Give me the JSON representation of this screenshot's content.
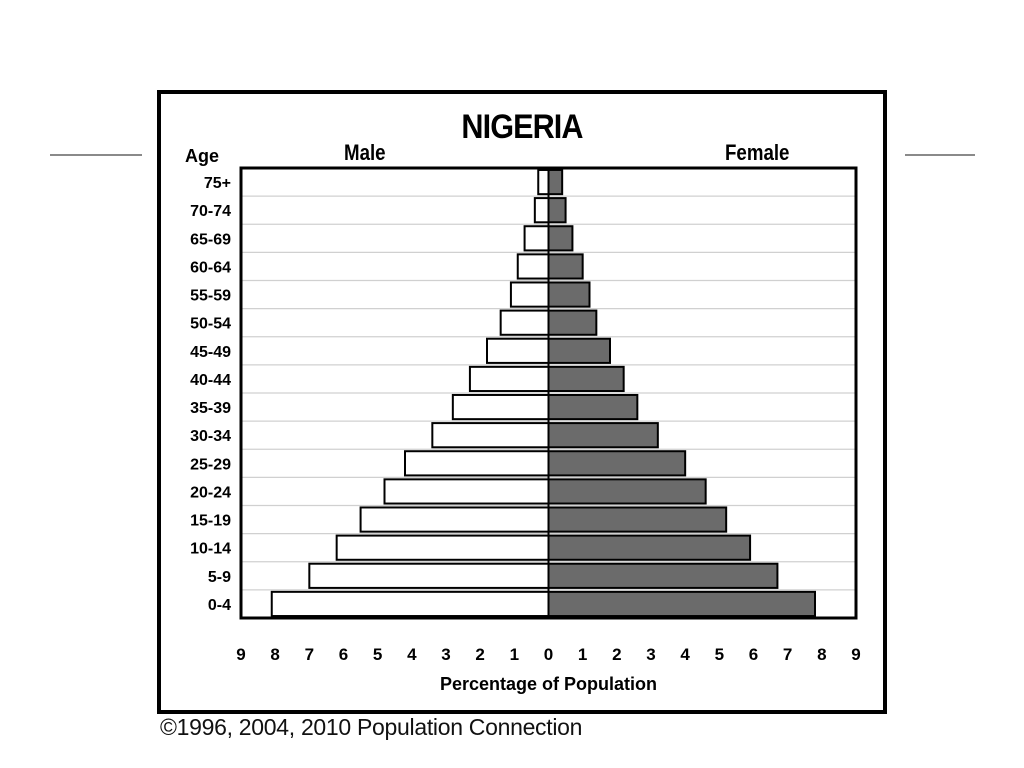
{
  "colors": {
    "male": "#ffffff",
    "female": "#6b6b6b",
    "frame": "#000000",
    "grid": "#d0d0d0",
    "slide_line": "#8a8a8a"
  },
  "copyright": "©1996, 2004, 2010 Population Connection",
  "chart_data": {
    "type": "bar",
    "orientation": "horizontal",
    "title": "NIGERIA",
    "age_axis_label": "Age",
    "xlabel": "Percentage of Population",
    "xlim": [
      0,
      9
    ],
    "xticks": [
      "9",
      "8",
      "7",
      "6",
      "5",
      "4",
      "3",
      "2",
      "1",
      "0",
      "1",
      "2",
      "3",
      "4",
      "5",
      "6",
      "7",
      "8",
      "9"
    ],
    "categories": [
      "75+",
      "70-74",
      "65-69",
      "60-64",
      "55-59",
      "50-54",
      "45-49",
      "40-44",
      "35-39",
      "30-34",
      "25-29",
      "20-24",
      "15-19",
      "10-14",
      "5-9",
      "0-4"
    ],
    "series": [
      {
        "name": "Male",
        "values": [
          0.3,
          0.4,
          0.7,
          0.9,
          1.1,
          1.4,
          1.8,
          2.3,
          2.8,
          3.4,
          4.2,
          4.8,
          5.5,
          6.2,
          7.0,
          8.1
        ]
      },
      {
        "name": "Female",
        "values": [
          0.4,
          0.5,
          0.7,
          1.0,
          1.2,
          1.4,
          1.8,
          2.2,
          2.6,
          3.2,
          4.0,
          4.6,
          5.2,
          5.9,
          6.7,
          7.8
        ]
      }
    ],
    "grid": true
  }
}
